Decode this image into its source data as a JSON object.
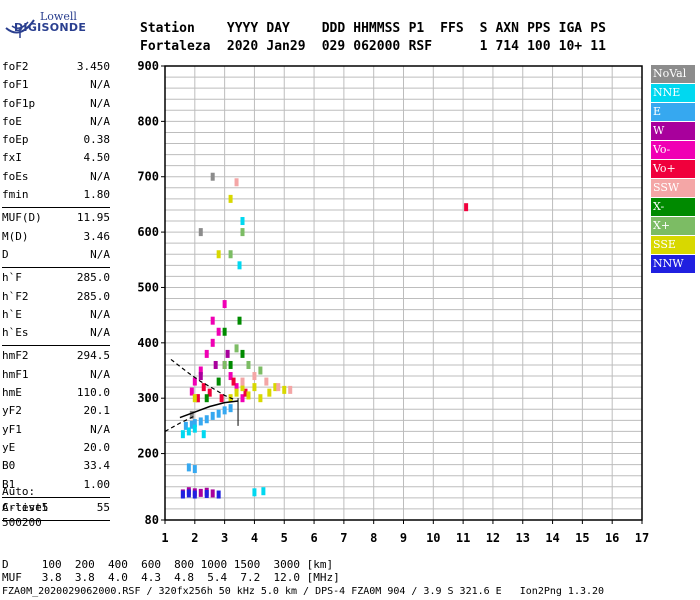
{
  "logo": {
    "brand": "Lowell",
    "name": "DIGISONDE"
  },
  "header": {
    "labels": [
      "Station",
      "YYYY",
      "DAY",
      "DDD",
      "HHMMSS",
      "P1",
      "FFS",
      "S",
      "AXN",
      "PPS",
      "IGA",
      "PS"
    ],
    "values": [
      "Fortaleza",
      "2020",
      "Jan29",
      "029",
      "062000",
      "RSF",
      "",
      "1",
      "714",
      "100",
      "10+",
      "11"
    ]
  },
  "params": [
    {
      "name": "foF2",
      "value": "3.450"
    },
    {
      "name": "foF1",
      "value": "N/A"
    },
    {
      "name": "foF1p",
      "value": "N/A"
    },
    {
      "name": "foE",
      "value": "N/A"
    },
    {
      "name": "foEp",
      "value": "0.38"
    },
    {
      "name": "fxI",
      "value": "4.50"
    },
    {
      "name": "foEs",
      "value": "N/A"
    },
    {
      "name": "fmin",
      "value": "1.80"
    },
    {
      "name": "MUF(D)",
      "value": "11.95"
    },
    {
      "name": "M(D)",
      "value": "3.46"
    },
    {
      "name": "D",
      "value": "N/A"
    },
    {
      "name": "h`F",
      "value": "285.0"
    },
    {
      "name": "h`F2",
      "value": "285.0"
    },
    {
      "name": "h`E",
      "value": "N/A"
    },
    {
      "name": "h`Es",
      "value": "N/A"
    },
    {
      "name": "hmF2",
      "value": "294.5"
    },
    {
      "name": "hmF1",
      "value": "N/A"
    },
    {
      "name": "hmE",
      "value": "110.0"
    },
    {
      "name": "yF2",
      "value": "20.1"
    },
    {
      "name": "yF1",
      "value": "N/A"
    },
    {
      "name": "yE",
      "value": "20.0"
    },
    {
      "name": "B0",
      "value": "33.4"
    },
    {
      "name": "B1",
      "value": "1.00"
    },
    {
      "name": "C-level",
      "value": "55"
    }
  ],
  "auto": {
    "line1": "Auto:",
    "line2": "Artist5",
    "line3": "500200"
  },
  "legend": [
    {
      "label": "NoVal",
      "color": "#8c8c8c"
    },
    {
      "label": "NNE",
      "color": "#00d8f0"
    },
    {
      "label": "E",
      "color": "#36a8f0"
    },
    {
      "label": "W",
      "color": "#a8009c"
    },
    {
      "label": "Vo-",
      "color": "#f000b4"
    },
    {
      "label": "Vo+",
      "color": "#f0003c"
    },
    {
      "label": "SSW",
      "color": "#f4a6a6"
    },
    {
      "label": "X-",
      "color": "#008a00"
    },
    {
      "label": "X+",
      "color": "#7cbc64"
    },
    {
      "label": "SSE",
      "color": "#d8d800"
    },
    {
      "label": "NNW",
      "color": "#2020e0"
    }
  ],
  "dtable": {
    "d_label": "D",
    "d_values": [
      "100",
      "200",
      "400",
      "600",
      "800",
      "1000",
      "1500",
      "3000"
    ],
    "d_unit": "[km]",
    "muf_label": "MUF",
    "muf_values": [
      "3.8",
      "3.8",
      "4.0",
      "4.3",
      "4.8",
      "5.4",
      "7.2",
      "12.0"
    ],
    "muf_unit": "[MHz]"
  },
  "footer": "FZA0M_2020029062000.RSF / 320fx256h 50 kHz 5.0 km / DPS-4 FZA0M 904 / 3.9 S 321.6 E   Ion2Png 1.3.20",
  "chart_data": {
    "type": "scatter",
    "xlabel": "",
    "ylabel": "",
    "xlim": [
      1,
      17
    ],
    "ylim": [
      80,
      900
    ],
    "xticks": [
      1,
      2,
      3,
      4,
      5,
      6,
      7,
      8,
      9,
      10,
      11,
      12,
      13,
      14,
      15,
      16,
      17
    ],
    "yticks": [
      80,
      200,
      300,
      400,
      500,
      600,
      700,
      800,
      900
    ],
    "grid": true,
    "legend_position": "right",
    "series": [
      {
        "name": "E",
        "color": "#36a8f0",
        "points": [
          [
            1.7,
            250
          ],
          [
            1.9,
            252
          ],
          [
            2.0,
            255
          ],
          [
            2.2,
            258
          ],
          [
            2.4,
            262
          ],
          [
            2.6,
            268
          ],
          [
            2.8,
            272
          ],
          [
            3.0,
            278
          ],
          [
            3.2,
            282
          ],
          [
            1.8,
            175
          ],
          [
            2.0,
            172
          ]
        ]
      },
      {
        "name": "Vo-",
        "color": "#f000b4",
        "points": [
          [
            2.0,
            330
          ],
          [
            2.2,
            350
          ],
          [
            2.4,
            380
          ],
          [
            2.6,
            400
          ],
          [
            2.8,
            420
          ],
          [
            3.0,
            360
          ],
          [
            3.2,
            340
          ],
          [
            3.4,
            320
          ],
          [
            3.6,
            300
          ],
          [
            3.0,
            470
          ],
          [
            2.6,
            440
          ],
          [
            1.9,
            312
          ],
          [
            2.1,
            300
          ]
        ]
      },
      {
        "name": "Vo+",
        "color": "#f0003c",
        "points": [
          [
            2.1,
            300
          ],
          [
            2.3,
            320
          ],
          [
            2.5,
            310
          ],
          [
            2.9,
            300
          ],
          [
            3.3,
            330
          ],
          [
            3.7,
            310
          ],
          [
            11.1,
            645
          ]
        ]
      },
      {
        "name": "W",
        "color": "#a8009c",
        "points": [
          [
            1.6,
            128
          ],
          [
            1.8,
            132
          ],
          [
            2.0,
            130
          ],
          [
            2.2,
            129
          ],
          [
            2.4,
            131
          ],
          [
            2.6,
            128
          ],
          [
            2.2,
            340
          ],
          [
            2.7,
            360
          ],
          [
            3.1,
            380
          ]
        ]
      },
      {
        "name": "SSE",
        "color": "#d8d800",
        "points": [
          [
            3.2,
            300
          ],
          [
            3.4,
            310
          ],
          [
            3.6,
            320
          ],
          [
            3.8,
            305
          ],
          [
            4.0,
            320
          ],
          [
            4.2,
            300
          ],
          [
            4.5,
            310
          ],
          [
            4.7,
            320
          ],
          [
            5.0,
            315
          ],
          [
            2.0,
            300
          ],
          [
            2.8,
            560
          ],
          [
            3.2,
            660
          ]
        ]
      },
      {
        "name": "SSW",
        "color": "#f4a6a6",
        "points": [
          [
            3.6,
            330
          ],
          [
            4.0,
            340
          ],
          [
            4.4,
            330
          ],
          [
            4.8,
            320
          ],
          [
            5.2,
            315
          ],
          [
            3.4,
            690
          ]
        ]
      },
      {
        "name": "X-",
        "color": "#008a00",
        "points": [
          [
            2.4,
            300
          ],
          [
            2.8,
            330
          ],
          [
            3.2,
            360
          ],
          [
            3.6,
            380
          ],
          [
            3.0,
            420
          ],
          [
            3.5,
            440
          ]
        ]
      },
      {
        "name": "X+",
        "color": "#7cbc64",
        "points": [
          [
            3.0,
            360
          ],
          [
            3.4,
            390
          ],
          [
            3.8,
            360
          ],
          [
            4.2,
            350
          ],
          [
            3.2,
            560
          ],
          [
            3.6,
            600
          ]
        ]
      },
      {
        "name": "NNE",
        "color": "#00d8f0",
        "points": [
          [
            1.8,
            240
          ],
          [
            2.0,
            245
          ],
          [
            2.3,
            235
          ],
          [
            3.5,
            540
          ],
          [
            3.6,
            620
          ],
          [
            4.0,
            130
          ],
          [
            4.3,
            132
          ],
          [
            1.6,
            235
          ]
        ]
      },
      {
        "name": "NNW",
        "color": "#2020e0",
        "points": [
          [
            1.6,
            126
          ],
          [
            1.8,
            128
          ],
          [
            2.0,
            126
          ],
          [
            2.4,
            127
          ],
          [
            2.8,
            126
          ]
        ]
      },
      {
        "name": "NoVal",
        "color": "#8c8c8c",
        "points": [
          [
            2.2,
            600
          ],
          [
            2.6,
            700
          ],
          [
            1.9,
            270
          ]
        ]
      }
    ],
    "profile_line": [
      [
        1.5,
        265
      ],
      [
        2.0,
        275
      ],
      [
        2.5,
        285
      ],
      [
        3.0,
        292
      ],
      [
        3.45,
        295
      ]
    ],
    "profile_dashed": [
      [
        1.0,
        240
      ],
      [
        1.5,
        255
      ],
      [
        2.0,
        268
      ]
    ],
    "trace_dashed": [
      [
        1.2,
        370
      ],
      [
        1.8,
        345
      ],
      [
        2.2,
        330
      ],
      [
        2.6,
        318
      ],
      [
        3.0,
        305
      ],
      [
        3.3,
        298
      ]
    ]
  }
}
